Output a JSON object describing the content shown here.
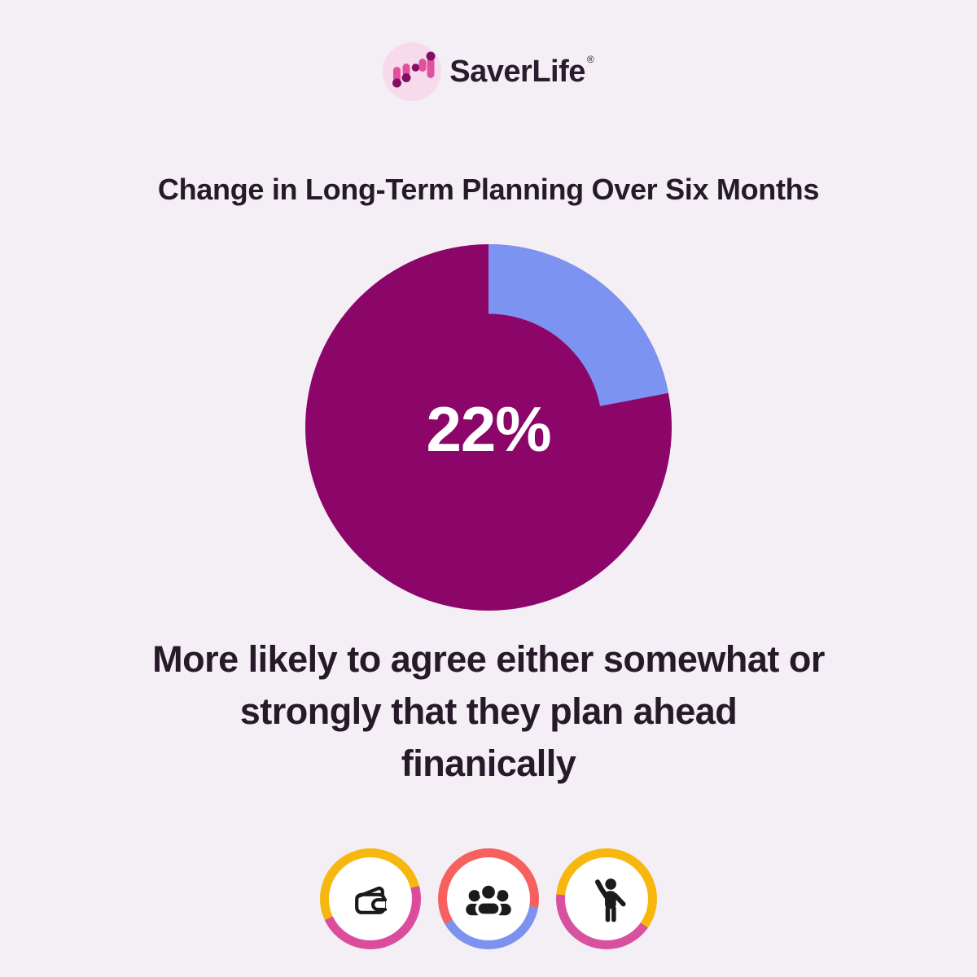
{
  "page": {
    "background_color": "#F3EFF5"
  },
  "logo": {
    "brand": "SaverLife",
    "trademark_symbol": "®",
    "mark": {
      "background_color": "#F7DBEC",
      "pill_color": "#E0519E",
      "dot_color": "#811064"
    }
  },
  "chart_data": {
    "type": "pie",
    "title": "Change in Long-Term Planning Over Six Months",
    "center_label": "22%",
    "center_label_color": "#FFFFFF",
    "series": [
      {
        "name": "highlighted share",
        "value": 22,
        "color": "#7C93F1"
      },
      {
        "name": "remainder",
        "value": 78,
        "color": "#8C0669"
      }
    ],
    "start_angle_deg": 0,
    "direction": "clockwise",
    "inner_disc_ratio": 0.62,
    "legend": "none"
  },
  "caption": {
    "lines": [
      "More likely to agree either somewhat or",
      "strongly that they plan ahead",
      "finanically"
    ]
  },
  "footer_badges": [
    {
      "label": "wallet",
      "icon": "wallet-icon",
      "ring_top_color": "#F7B70F",
      "ring_bottom_color": "#DB4D9C",
      "icon_color": "#1B1B1B"
    },
    {
      "label": "people-group",
      "icon": "people-group-icon",
      "ring_top_color": "#F6615F",
      "ring_bottom_color": "#7C92EE",
      "icon_color": "#1B1B1B"
    },
    {
      "label": "person-raising-hand",
      "icon": "person-raising-hand-icon",
      "ring_top_color": "#F7B70F",
      "ring_bottom_color": "#D8519E",
      "icon_color": "#1B1B1B"
    }
  ]
}
